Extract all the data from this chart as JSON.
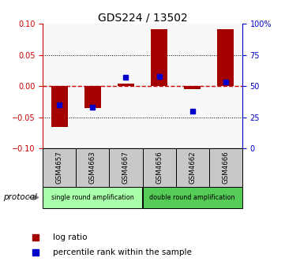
{
  "title": "GDS224 / 13502",
  "samples": [
    "GSM4657",
    "GSM4663",
    "GSM4667",
    "GSM4656",
    "GSM4662",
    "GSM4666"
  ],
  "log_ratios": [
    -0.065,
    -0.035,
    0.004,
    0.092,
    -0.005,
    0.091
  ],
  "percentile_ranks": [
    35,
    33,
    57,
    58,
    30,
    53
  ],
  "ylim_left": [
    -0.1,
    0.1
  ],
  "ylim_right": [
    0,
    100
  ],
  "yticks_left": [
    -0.1,
    -0.05,
    0,
    0.05,
    0.1
  ],
  "yticks_right": [
    0,
    25,
    50,
    75,
    100
  ],
  "bar_color": "#a50000",
  "dot_color": "#0000cc",
  "zero_line_color": "#cc0000",
  "protocol_groups": [
    {
      "label": "single round amplification",
      "color": "#aaffaa"
    },
    {
      "label": "double round amplification",
      "color": "#55cc55"
    }
  ],
  "protocol_label": "protocol",
  "legend_bar_label": "log ratio",
  "legend_dot_label": "percentile rank within the sample",
  "tick_color_left": "#cc0000",
  "tick_color_right": "#0000cc",
  "plot_bg": "#f8f8f8"
}
